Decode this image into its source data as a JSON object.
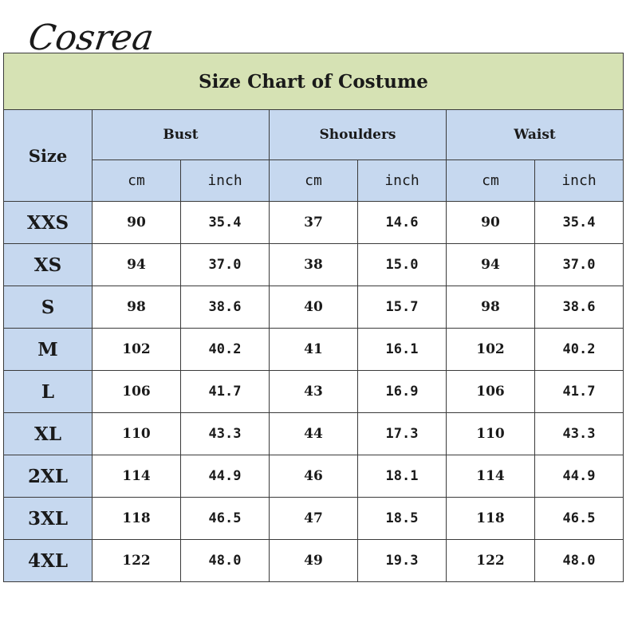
{
  "logo_text": "Cosrea",
  "title": "Size Chart of Costume",
  "size_header": "Size",
  "groups": [
    "Bust",
    "Shoulders",
    "Waist"
  ],
  "units": [
    "cm",
    "inch",
    "cm",
    "inch",
    "cm",
    "inch"
  ],
  "rows": [
    {
      "size": "XXS",
      "values": [
        "90",
        "35.4",
        "37",
        "14.6",
        "90",
        "35.4"
      ]
    },
    {
      "size": "XS",
      "values": [
        "94",
        "37.0",
        "38",
        "15.0",
        "94",
        "37.0"
      ]
    },
    {
      "size": "S",
      "values": [
        "98",
        "38.6",
        "40",
        "15.7",
        "98",
        "38.6"
      ]
    },
    {
      "size": "M",
      "values": [
        "102",
        "40.2",
        "41",
        "16.1",
        "102",
        "40.2"
      ]
    },
    {
      "size": "L",
      "values": [
        "106",
        "41.7",
        "43",
        "16.9",
        "106",
        "41.7"
      ]
    },
    {
      "size": "XL",
      "values": [
        "110",
        "43.3",
        "44",
        "17.3",
        "110",
        "43.3"
      ]
    },
    {
      "size": "2XL",
      "values": [
        "114",
        "44.9",
        "46",
        "18.1",
        "114",
        "44.9"
      ]
    },
    {
      "size": "3XL",
      "values": [
        "118",
        "46.5",
        "47",
        "18.5",
        "118",
        "46.5"
      ]
    },
    {
      "size": "4XL",
      "values": [
        "122",
        "48.0",
        "49",
        "19.3",
        "122",
        "48.0"
      ]
    }
  ],
  "colors": {
    "title_bg": "#d6e2b4",
    "header_bg": "#c6d8ef",
    "border": "#3a3a3a"
  }
}
